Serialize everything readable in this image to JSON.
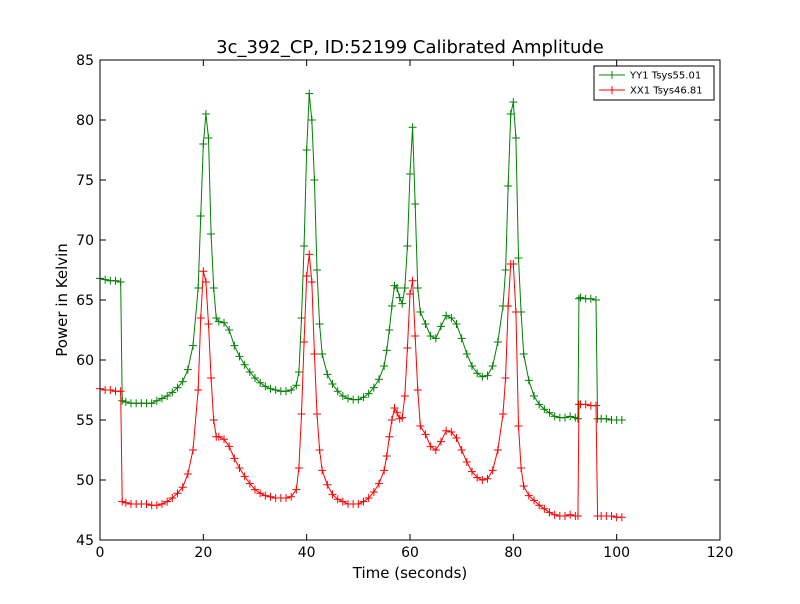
{
  "chart_data": {
    "type": "line",
    "title": "3c_392_CP, ID:52199 Calibrated Amplitude",
    "xlabel": "Time (seconds)",
    "ylabel": "Power in Kelvin",
    "xlim": [
      0,
      120
    ],
    "ylim": [
      45,
      85
    ],
    "xticks": [
      0,
      20,
      40,
      60,
      80,
      100,
      120
    ],
    "yticks": [
      45,
      50,
      55,
      60,
      65,
      70,
      75,
      80,
      85
    ],
    "grid": false,
    "legend_position": "top-right",
    "marker": "plus",
    "series": [
      {
        "name": "YY1 Tsys55.01",
        "color": "#008000",
        "points": [
          [
            0,
            66.8
          ],
          [
            1,
            66.7
          ],
          [
            2,
            66.6
          ],
          [
            3,
            66.6
          ],
          [
            4,
            66.5
          ],
          [
            4.3,
            56.6
          ],
          [
            5,
            56.5
          ],
          [
            6,
            56.4
          ],
          [
            7,
            56.4
          ],
          [
            8,
            56.4
          ],
          [
            9,
            56.4
          ],
          [
            10,
            56.4
          ],
          [
            11,
            56.6
          ],
          [
            12,
            56.8
          ],
          [
            13,
            57.0
          ],
          [
            14,
            57.3
          ],
          [
            15,
            57.7
          ],
          [
            16,
            58.2
          ],
          [
            17,
            59.2
          ],
          [
            18,
            61.2
          ],
          [
            19,
            66.0
          ],
          [
            19.5,
            72.0
          ],
          [
            20,
            78.0
          ],
          [
            20.5,
            80.5
          ],
          [
            21,
            78.5
          ],
          [
            21.5,
            70.5
          ],
          [
            22,
            66.0
          ],
          [
            22.5,
            63.5
          ],
          [
            23,
            63.2
          ],
          [
            24,
            63.1
          ],
          [
            25,
            62.5
          ],
          [
            26,
            61.2
          ],
          [
            27,
            60.3
          ],
          [
            28,
            59.6
          ],
          [
            29,
            59.0
          ],
          [
            30,
            58.5
          ],
          [
            31,
            58.1
          ],
          [
            32,
            57.8
          ],
          [
            33,
            57.6
          ],
          [
            34,
            57.5
          ],
          [
            35,
            57.4
          ],
          [
            36,
            57.4
          ],
          [
            37,
            57.5
          ],
          [
            38,
            57.9
          ],
          [
            38.5,
            59.0
          ],
          [
            39,
            63.5
          ],
          [
            39.5,
            69.5
          ],
          [
            40,
            77.5
          ],
          [
            40.5,
            82.2
          ],
          [
            41,
            80.0
          ],
          [
            41.5,
            75.0
          ],
          [
            42,
            67.5
          ],
          [
            42.5,
            63.0
          ],
          [
            43,
            60.5
          ],
          [
            44,
            58.8
          ],
          [
            45,
            58.0
          ],
          [
            46,
            57.4
          ],
          [
            47,
            57.0
          ],
          [
            48,
            56.8
          ],
          [
            49,
            56.7
          ],
          [
            50,
            56.7
          ],
          [
            51,
            56.9
          ],
          [
            52,
            57.2
          ],
          [
            53,
            57.7
          ],
          [
            54,
            58.4
          ],
          [
            55,
            59.5
          ],
          [
            55.5,
            60.8
          ],
          [
            56,
            62.5
          ],
          [
            56.5,
            64.5
          ],
          [
            57,
            66.2
          ],
          [
            57.5,
            66.0
          ],
          [
            58,
            65.2
          ],
          [
            58.5,
            64.7
          ],
          [
            59,
            66.0
          ],
          [
            59.5,
            69.5
          ],
          [
            60,
            75.5
          ],
          [
            60.5,
            79.4
          ],
          [
            61,
            73.0
          ],
          [
            61.5,
            66.0
          ],
          [
            62,
            64.0
          ],
          [
            63,
            63.0
          ],
          [
            64,
            62.0
          ],
          [
            65,
            61.8
          ],
          [
            66,
            62.8
          ],
          [
            67,
            63.7
          ],
          [
            68,
            63.5
          ],
          [
            69,
            63.0
          ],
          [
            70,
            61.8
          ],
          [
            71,
            60.5
          ],
          [
            72,
            59.5
          ],
          [
            73,
            58.9
          ],
          [
            74,
            58.6
          ],
          [
            75,
            58.7
          ],
          [
            76,
            59.5
          ],
          [
            77,
            61.5
          ],
          [
            78,
            64.5
          ],
          [
            78.5,
            67.5
          ],
          [
            79,
            74.5
          ],
          [
            79.5,
            80.5
          ],
          [
            80,
            81.5
          ],
          [
            80.5,
            78.5
          ],
          [
            81,
            68.5
          ],
          [
            81.5,
            64.0
          ],
          [
            82,
            60.5
          ],
          [
            83,
            58.3
          ],
          [
            84,
            57.0
          ],
          [
            85,
            56.3
          ],
          [
            86,
            55.9
          ],
          [
            87,
            55.6
          ],
          [
            88,
            55.3
          ],
          [
            89,
            55.2
          ],
          [
            90,
            55.2
          ],
          [
            91,
            55.3
          ],
          [
            92,
            55.2
          ],
          [
            92.5,
            55.1
          ],
          [
            92.7,
            65.1
          ],
          [
            93,
            65.2
          ],
          [
            94,
            65.1
          ],
          [
            95,
            65.1
          ],
          [
            96,
            65.0
          ],
          [
            96.3,
            55.1
          ],
          [
            97,
            55.1
          ],
          [
            98,
            55.1
          ],
          [
            99,
            55.0
          ],
          [
            100,
            55.0
          ],
          [
            101,
            55.0
          ]
        ]
      },
      {
        "name": "XX1 Tsys46.81",
        "color": "#ff0000",
        "points": [
          [
            0,
            57.6
          ],
          [
            1,
            57.5
          ],
          [
            2,
            57.5
          ],
          [
            3,
            57.4
          ],
          [
            4,
            57.4
          ],
          [
            4.3,
            48.2
          ],
          [
            5,
            48.1
          ],
          [
            6,
            48.0
          ],
          [
            7,
            48.0
          ],
          [
            8,
            48.0
          ],
          [
            9,
            48.0
          ],
          [
            10,
            47.9
          ],
          [
            11,
            47.9
          ],
          [
            12,
            48.0
          ],
          [
            13,
            48.2
          ],
          [
            14,
            48.5
          ],
          [
            15,
            48.9
          ],
          [
            16,
            49.4
          ],
          [
            17,
            50.5
          ],
          [
            18,
            52.5
          ],
          [
            19,
            57.5
          ],
          [
            19.5,
            63.5
          ],
          [
            20,
            67.4
          ],
          [
            20.5,
            66.5
          ],
          [
            21,
            63.0
          ],
          [
            21.5,
            58.5
          ],
          [
            22,
            55.0
          ],
          [
            22.5,
            53.6
          ],
          [
            23,
            53.6
          ],
          [
            24,
            53.4
          ],
          [
            25,
            52.8
          ],
          [
            26,
            51.8
          ],
          [
            27,
            51.0
          ],
          [
            28,
            50.3
          ],
          [
            29,
            49.7
          ],
          [
            30,
            49.2
          ],
          [
            31,
            48.9
          ],
          [
            32,
            48.7
          ],
          [
            33,
            48.6
          ],
          [
            34,
            48.5
          ],
          [
            35,
            48.5
          ],
          [
            36,
            48.5
          ],
          [
            37,
            48.6
          ],
          [
            38,
            49.2
          ],
          [
            38.5,
            51.0
          ],
          [
            39,
            55.5
          ],
          [
            39.5,
            61.5
          ],
          [
            40,
            67.0
          ],
          [
            40.5,
            68.8
          ],
          [
            41,
            66.5
          ],
          [
            41.5,
            60.5
          ],
          [
            42,
            55.5
          ],
          [
            42.5,
            52.5
          ],
          [
            43,
            50.8
          ],
          [
            44,
            49.6
          ],
          [
            45,
            48.8
          ],
          [
            46,
            48.4
          ],
          [
            47,
            48.2
          ],
          [
            48,
            48.0
          ],
          [
            49,
            48.0
          ],
          [
            50,
            48.0
          ],
          [
            51,
            48.2
          ],
          [
            52,
            48.5
          ],
          [
            53,
            49.0
          ],
          [
            54,
            49.7
          ],
          [
            55,
            50.8
          ],
          [
            55.5,
            52.0
          ],
          [
            56,
            53.6
          ],
          [
            56.5,
            55.0
          ],
          [
            57,
            56.0
          ],
          [
            57.5,
            55.6
          ],
          [
            58,
            55.1
          ],
          [
            58.5,
            55.2
          ],
          [
            59,
            57.0
          ],
          [
            59.5,
            61.0
          ],
          [
            60,
            65.5
          ],
          [
            60.5,
            66.6
          ],
          [
            61,
            62.0
          ],
          [
            61.5,
            57.5
          ],
          [
            62,
            54.5
          ],
          [
            63,
            53.8
          ],
          [
            64,
            52.8
          ],
          [
            65,
            52.5
          ],
          [
            66,
            53.2
          ],
          [
            67,
            54.1
          ],
          [
            68,
            54.0
          ],
          [
            69,
            53.5
          ],
          [
            70,
            52.5
          ],
          [
            71,
            51.5
          ],
          [
            72,
            50.7
          ],
          [
            73,
            50.2
          ],
          [
            74,
            50.0
          ],
          [
            75,
            50.1
          ],
          [
            76,
            50.8
          ],
          [
            77,
            52.5
          ],
          [
            78,
            55.5
          ],
          [
            78.5,
            58.5
          ],
          [
            79,
            64.5
          ],
          [
            79.5,
            68.0
          ],
          [
            80,
            68.0
          ],
          [
            80.5,
            64.0
          ],
          [
            81,
            54.5
          ],
          [
            81.5,
            51.0
          ],
          [
            82,
            49.5
          ],
          [
            83,
            48.7
          ],
          [
            84,
            48.3
          ],
          [
            85,
            47.9
          ],
          [
            86,
            47.6
          ],
          [
            87,
            47.3
          ],
          [
            88,
            47.1
          ],
          [
            89,
            47.0
          ],
          [
            90,
            47.0
          ],
          [
            91,
            47.1
          ],
          [
            92,
            47.0
          ],
          [
            92.5,
            47.0
          ],
          [
            92.7,
            56.3
          ],
          [
            93,
            56.3
          ],
          [
            94,
            56.3
          ],
          [
            95,
            56.2
          ],
          [
            96,
            56.2
          ],
          [
            96.3,
            47.0
          ],
          [
            97,
            47.0
          ],
          [
            98,
            47.0
          ],
          [
            99,
            47.0
          ],
          [
            100,
            46.9
          ],
          [
            101,
            46.9
          ]
        ]
      }
    ]
  }
}
